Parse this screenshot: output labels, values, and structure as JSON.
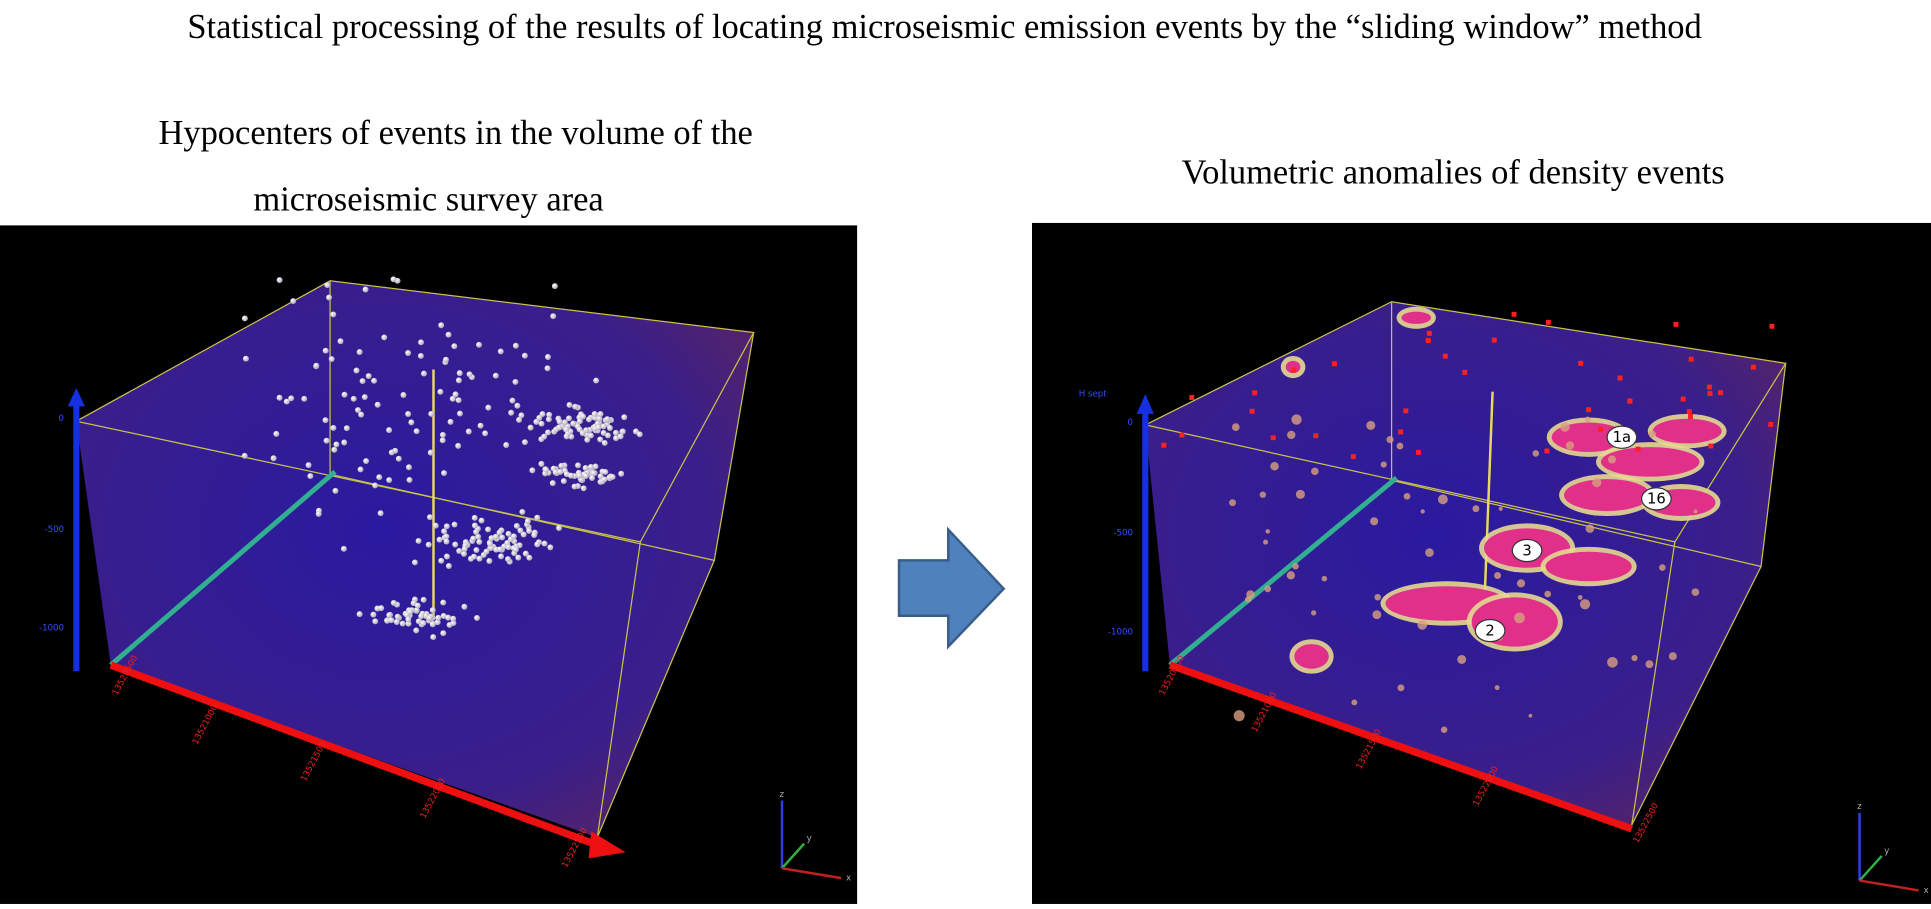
{
  "title": "Statistical processing of the results of locating microseismic emission events by the “sliding window” method",
  "left": {
    "caption": [
      "Hypocenters of events in the volume of the",
      "microseismic survey area"
    ],
    "depth_labels": [
      "0",
      "-500",
      "-1000"
    ],
    "x_labels": [
      "13520500",
      "13521000",
      "13521500",
      "13522000",
      "13522500"
    ],
    "triad": [
      "z",
      "y",
      "x"
    ]
  },
  "right": {
    "caption": "Volumetric anomalies of density events",
    "axis_title": "H sept",
    "depth_labels": [
      "0",
      "-500",
      "-1000"
    ],
    "x_labels": [
      "13520500",
      "13521000",
      "13521500",
      "13522000",
      "13522500"
    ],
    "anomaly_labels": [
      "1a",
      "16",
      "3",
      "2"
    ],
    "triad": [
      "z",
      "y",
      "x"
    ]
  }
}
